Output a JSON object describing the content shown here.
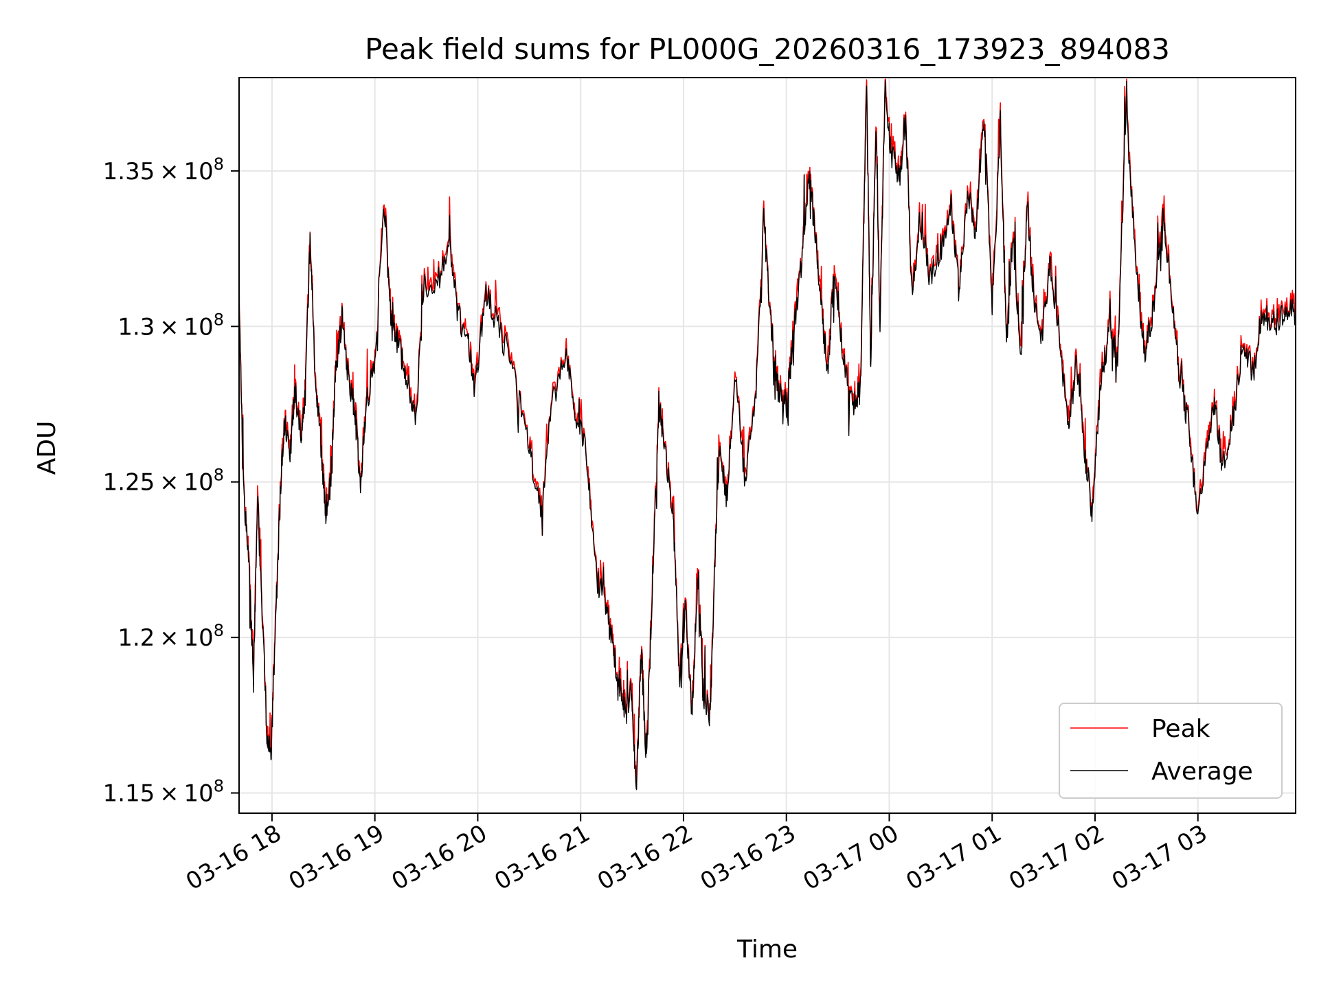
{
  "chart_data": {
    "type": "line",
    "title": "Peak field sums for PL000G_20260316_173923_894083",
    "xlabel": "Time",
    "ylabel": "ADU",
    "x_unit": "hours since 03-16 17:00",
    "xlim": [
      0.68,
      10.95
    ],
    "ylim": [
      114350000,
      138000000
    ],
    "grid": true,
    "legend_location": "lower-right",
    "x_ticks": [
      {
        "value": 1,
        "label": "03-16 18"
      },
      {
        "value": 2,
        "label": "03-16 19"
      },
      {
        "value": 3,
        "label": "03-16 20"
      },
      {
        "value": 4,
        "label": "03-16 21"
      },
      {
        "value": 5,
        "label": "03-16 22"
      },
      {
        "value": 6,
        "label": "03-16 23"
      },
      {
        "value": 7,
        "label": "03-17 00"
      },
      {
        "value": 8,
        "label": "03-17 01"
      },
      {
        "value": 9,
        "label": "03-17 02"
      },
      {
        "value": 10,
        "label": "03-17 03"
      }
    ],
    "y_ticks": [
      {
        "value": 115000000,
        "mantissa": "1.15",
        "exponent": "8"
      },
      {
        "value": 120000000,
        "mantissa": "1.2",
        "exponent": "8"
      },
      {
        "value": 125000000,
        "mantissa": "1.25",
        "exponent": "8"
      },
      {
        "value": 130000000,
        "mantissa": "1.3",
        "exponent": "8"
      },
      {
        "value": 135000000,
        "mantissa": "1.35",
        "exponent": "8"
      }
    ],
    "series": [
      {
        "name": "Peak",
        "color": "#ff0000"
      },
      {
        "name": "Average",
        "color": "#000000"
      }
    ],
    "average_anchor_points": [
      [
        0.68,
        131.0
      ],
      [
        0.72,
        125.0
      ],
      [
        0.78,
        122.0
      ],
      [
        0.82,
        118.5
      ],
      [
        0.86,
        124.5
      ],
      [
        0.9,
        121.0
      ],
      [
        0.95,
        117.0
      ],
      [
        0.99,
        116.2
      ],
      [
        1.03,
        120.0
      ],
      [
        1.08,
        124.5
      ],
      [
        1.12,
        127.0
      ],
      [
        1.18,
        126.0
      ],
      [
        1.22,
        128.0
      ],
      [
        1.28,
        126.5
      ],
      [
        1.32,
        127.5
      ],
      [
        1.37,
        132.8
      ],
      [
        1.42,
        128.5
      ],
      [
        1.48,
        126.0
      ],
      [
        1.52,
        124.0
      ],
      [
        1.57,
        125.0
      ],
      [
        1.62,
        128.5
      ],
      [
        1.68,
        130.3
      ],
      [
        1.74,
        128.3
      ],
      [
        1.8,
        127.5
      ],
      [
        1.86,
        125.0
      ],
      [
        1.92,
        127.5
      ],
      [
        2.0,
        129.0
      ],
      [
        2.09,
        134.0
      ],
      [
        2.16,
        130.0
      ],
      [
        2.22,
        129.5
      ],
      [
        2.3,
        128.5
      ],
      [
        2.4,
        127.0
      ],
      [
        2.48,
        131.5
      ],
      [
        2.58,
        131.0
      ],
      [
        2.72,
        132.8
      ],
      [
        2.8,
        130.5
      ],
      [
        2.9,
        129.5
      ],
      [
        2.97,
        128.0
      ],
      [
        3.08,
        131.0
      ],
      [
        3.2,
        130.0
      ],
      [
        3.35,
        128.5
      ],
      [
        3.5,
        126.0
      ],
      [
        3.62,
        124.0
      ],
      [
        3.72,
        127.5
      ],
      [
        3.86,
        129.0
      ],
      [
        3.96,
        127.0
      ],
      [
        4.05,
        126.0
      ],
      [
        4.15,
        122.0
      ],
      [
        4.25,
        121.0
      ],
      [
        4.32,
        119.5
      ],
      [
        4.38,
        118.5
      ],
      [
        4.44,
        117.5
      ],
      [
        4.49,
        118.5
      ],
      [
        4.54,
        115.0
      ],
      [
        4.59,
        119.5
      ],
      [
        4.64,
        116.0
      ],
      [
        4.7,
        122.0
      ],
      [
        4.76,
        127.5
      ],
      [
        4.82,
        126.0
      ],
      [
        4.9,
        124.0
      ],
      [
        4.96,
        118.5
      ],
      [
        5.02,
        121.0
      ],
      [
        5.08,
        117.5
      ],
      [
        5.14,
        122.0
      ],
      [
        5.2,
        118.0
      ],
      [
        5.26,
        117.5
      ],
      [
        5.3,
        122.0
      ],
      [
        5.35,
        126.0
      ],
      [
        5.42,
        124.5
      ],
      [
        5.5,
        128.5
      ],
      [
        5.6,
        125.0
      ],
      [
        5.7,
        127.5
      ],
      [
        5.78,
        133.5
      ],
      [
        5.85,
        130.0
      ],
      [
        5.92,
        128.0
      ],
      [
        6.0,
        127.5
      ],
      [
        6.08,
        130.0
      ],
      [
        6.16,
        132.5
      ],
      [
        6.22,
        135.0
      ],
      [
        6.28,
        133.0
      ],
      [
        6.34,
        130.5
      ],
      [
        6.4,
        128.5
      ],
      [
        6.47,
        132.0
      ],
      [
        6.55,
        129.0
      ],
      [
        6.65,
        127.5
      ],
      [
        6.72,
        128.0
      ],
      [
        6.78,
        137.8
      ],
      [
        6.82,
        128.5
      ],
      [
        6.87,
        136.5
      ],
      [
        6.91,
        130.0
      ],
      [
        6.96,
        137.8
      ],
      [
        7.02,
        135.5
      ],
      [
        7.1,
        134.8
      ],
      [
        7.16,
        136.6
      ],
      [
        7.22,
        131.0
      ],
      [
        7.3,
        133.5
      ],
      [
        7.4,
        131.5
      ],
      [
        7.5,
        132.5
      ],
      [
        7.6,
        134.0
      ],
      [
        7.68,
        131.0
      ],
      [
        7.76,
        134.5
      ],
      [
        7.84,
        133.0
      ],
      [
        7.92,
        137.0
      ],
      [
        8.0,
        130.5
      ],
      [
        8.08,
        136.5
      ],
      [
        8.14,
        129.5
      ],
      [
        8.2,
        133.0
      ],
      [
        8.28,
        129.0
      ],
      [
        8.34,
        134.0
      ],
      [
        8.4,
        131.0
      ],
      [
        8.48,
        129.5
      ],
      [
        8.56,
        132.0
      ],
      [
        8.65,
        130.0
      ],
      [
        8.74,
        126.5
      ],
      [
        8.82,
        129.0
      ],
      [
        8.9,
        126.0
      ],
      [
        8.97,
        124.0
      ],
      [
        9.05,
        128.0
      ],
      [
        9.14,
        130.0
      ],
      [
        9.22,
        129.0
      ],
      [
        9.3,
        137.0
      ],
      [
        9.4,
        132.0
      ],
      [
        9.48,
        129.0
      ],
      [
        9.56,
        130.5
      ],
      [
        9.66,
        133.5
      ],
      [
        9.74,
        131.0
      ],
      [
        9.82,
        128.5
      ],
      [
        9.9,
        127.0
      ],
      [
        10.0,
        124.0
      ],
      [
        10.08,
        126.0
      ],
      [
        10.16,
        127.5
      ],
      [
        10.24,
        125.5
      ],
      [
        10.34,
        127.0
      ],
      [
        10.44,
        129.5
      ],
      [
        10.54,
        128.5
      ],
      [
        10.62,
        130.5
      ],
      [
        10.72,
        130.0
      ],
      [
        10.84,
        130.5
      ],
      [
        10.95,
        130.5
      ]
    ]
  }
}
